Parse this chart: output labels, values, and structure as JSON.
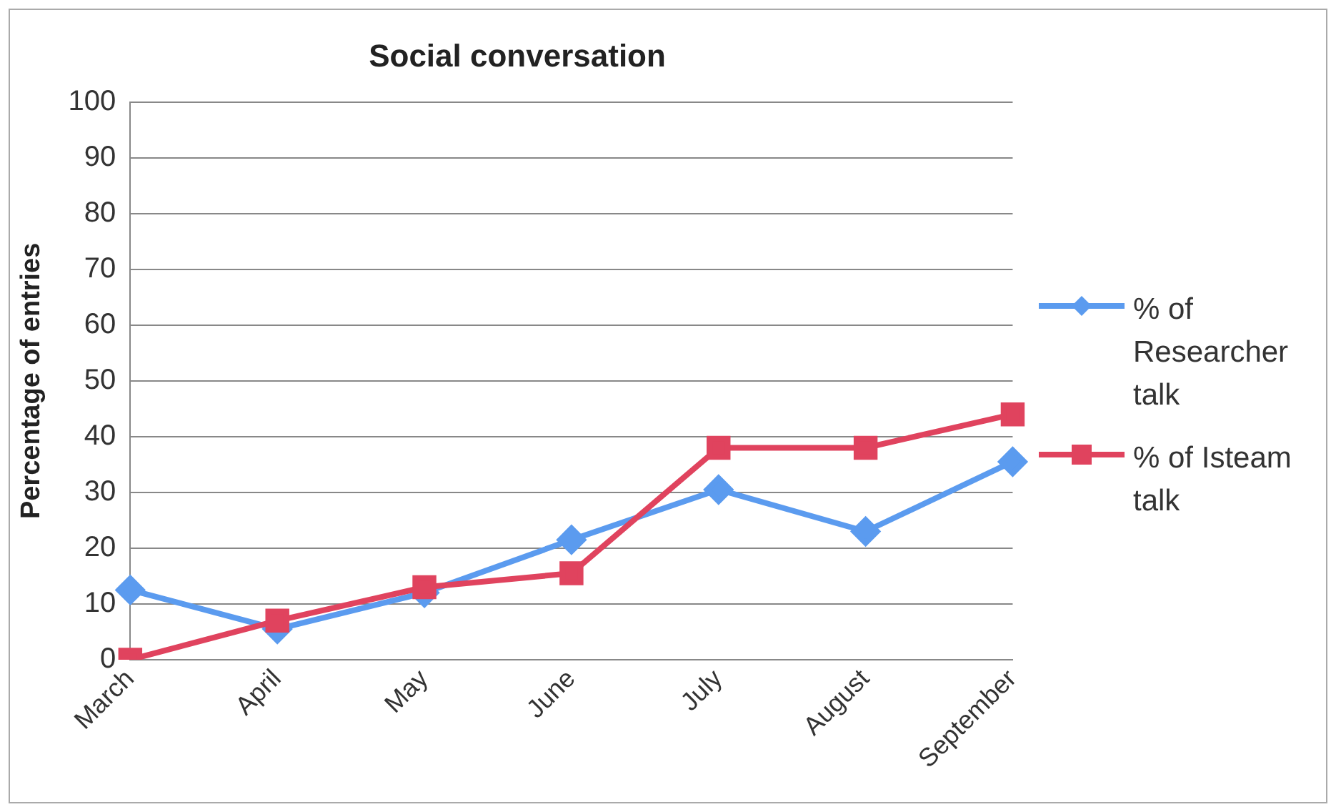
{
  "chart_data": {
    "type": "line",
    "title": "Social conversation",
    "ylabel": "Percentage of entries",
    "categories": [
      "March",
      "April",
      "May",
      "June",
      "July",
      "August",
      "September"
    ],
    "series": [
      {
        "name": "% of Researcher talk",
        "color": "#5b9bef",
        "marker": "diamond",
        "values": [
          12.5,
          5.5,
          12,
          21.5,
          30.5,
          23,
          35.5
        ]
      },
      {
        "name": "% of Isteam talk",
        "color": "#e0435e",
        "marker": "square",
        "values": [
          0,
          7,
          13,
          15.5,
          38,
          38,
          44
        ]
      }
    ],
    "ylim": [
      0,
      100
    ],
    "yticks": [
      0,
      10,
      20,
      30,
      40,
      50,
      60,
      70,
      80,
      90,
      100
    ],
    "grid": "y",
    "legend": "right"
  }
}
